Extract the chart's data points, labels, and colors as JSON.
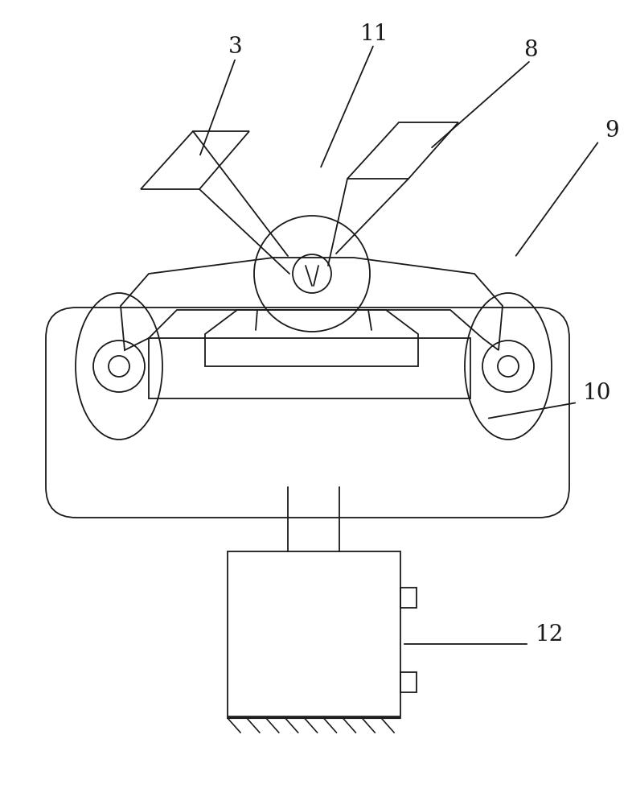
{
  "bg": "#ffffff",
  "lc": "#1a1a1a",
  "lw": 1.3,
  "fig_w": 7.81,
  "fig_h": 10.0,
  "dpi": 100
}
